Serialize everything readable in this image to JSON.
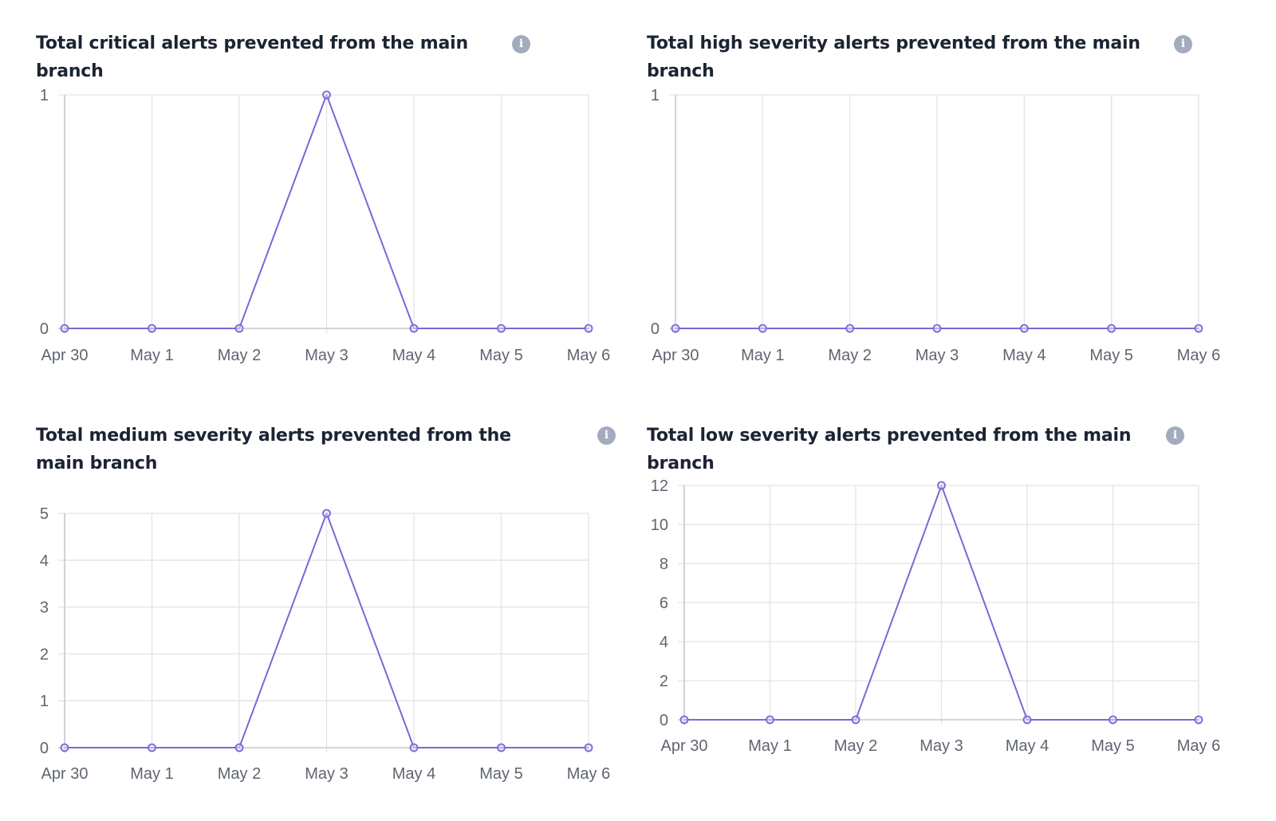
{
  "colors": {
    "line": "#7b68d6",
    "grid": "#e3e3e6",
    "axis": "#c9c9cd",
    "title": "#1c2433",
    "info_icon": "#a3acbd"
  },
  "info_icon_glyph": "i",
  "chart_data": [
    {
      "type": "line",
      "title": "Total critical alerts prevented from the main branch",
      "categories": [
        "Apr 30",
        "May 1",
        "May 2",
        "May 3",
        "May 4",
        "May 5",
        "May 6"
      ],
      "values": [
        0,
        0,
        0,
        1,
        0,
        0,
        0
      ],
      "yticks": [
        "0",
        "1"
      ],
      "ylim": [
        0,
        1
      ],
      "grid": true,
      "legend": "none"
    },
    {
      "type": "line",
      "title": "Total high severity alerts prevented from the main branch",
      "categories": [
        "Apr 30",
        "May 1",
        "May 2",
        "May 3",
        "May 4",
        "May 5",
        "May 6"
      ],
      "values": [
        0,
        0,
        0,
        0,
        0,
        0,
        0
      ],
      "yticks": [
        "0",
        "1"
      ],
      "ylim": [
        0,
        1
      ],
      "grid": true,
      "legend": "none"
    },
    {
      "type": "line",
      "title": "Total medium severity alerts prevented from the main branch",
      "categories": [
        "Apr 30",
        "May 1",
        "May 2",
        "May 3",
        "May 4",
        "May 5",
        "May 6"
      ],
      "values": [
        0,
        0,
        0,
        5,
        0,
        0,
        0
      ],
      "yticks": [
        "0",
        "1",
        "2",
        "3",
        "4",
        "5"
      ],
      "ylim": [
        0,
        5
      ],
      "grid": true,
      "legend": "none"
    },
    {
      "type": "line",
      "title": "Total low severity alerts prevented from the main branch",
      "categories": [
        "Apr 30",
        "May 1",
        "May 2",
        "May 3",
        "May 4",
        "May 5",
        "May 6"
      ],
      "values": [
        0,
        0,
        0,
        12,
        0,
        0,
        0
      ],
      "yticks": [
        "0",
        "2",
        "4",
        "6",
        "8",
        "10",
        "12"
      ],
      "ylim": [
        0,
        12
      ],
      "grid": true,
      "legend": "none"
    }
  ]
}
